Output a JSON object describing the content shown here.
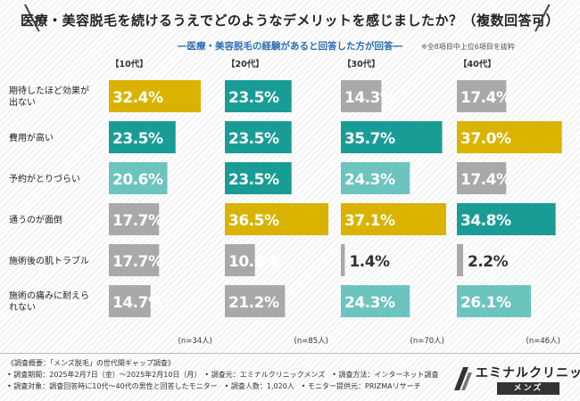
{
  "title": "医療・美容脱毛を続けるうえでどのようなデメリットを感じましたか？（複数回答可）",
  "subtitle": "―医療・美容脱毛の経験があると回答した方が回答―",
  "note": "※全8項目中上位6項目を抜粋",
  "chart_data": {
    "type": "bar",
    "orientation": "horizontal",
    "title": "医療・美容脱毛を続けるうえでどのようなデメリットを感じましたか？（複数回答可）",
    "unit": "%",
    "categories": [
      "期待したほど効果が出ない",
      "費用が高い",
      "予約がとりづらい",
      "通うのが面倒",
      "施術後の肌トラブル",
      "施術の痛みに耐えられない"
    ],
    "series": [
      {
        "name": "【10代】",
        "n": "(n=34人)",
        "values": [
          32.4,
          23.5,
          20.6,
          17.7,
          17.7,
          14.7
        ],
        "labels": [
          "32.4%",
          "23.5%",
          "20.6%",
          "17.7%",
          "17.7%",
          "14.7%"
        ]
      },
      {
        "name": "【20代】",
        "n": "(n=85人)",
        "values": [
          23.5,
          23.5,
          23.5,
          36.5,
          10.6,
          21.2
        ],
        "labels": [
          "23.5%",
          "23.5%",
          "23.5%",
          "36.5%",
          "10.6%",
          "21.2%"
        ]
      },
      {
        "name": "【30代】",
        "n": "(n=70人)",
        "values": [
          14.3,
          35.7,
          24.3,
          37.1,
          1.4,
          24.3
        ],
        "labels": [
          "14.3%",
          "35.7%",
          "24.3%",
          "37.1%",
          "1.4%",
          "24.3%"
        ]
      },
      {
        "name": "【40代】",
        "n": "(n=46人)",
        "values": [
          17.4,
          37.0,
          17.4,
          34.8,
          2.2,
          26.1
        ],
        "labels": [
          "17.4%",
          "37.0%",
          "17.4%",
          "34.8%",
          "2.2%",
          "26.1%"
        ]
      }
    ],
    "colors": {
      "top": "#d9b300",
      "second": "#1a9c96",
      "third": "#6cc4bf",
      "other": "#a9a9a9"
    }
  },
  "survey": {
    "line1": "《調査概要：「メンズ脱毛」の世代間ギャップ調査》",
    "line2": "• 調査期間：2025年2月7日（金）〜2025年2月10日（月）　• 調査元：エミナルクリニックメンズ　• 調査方法：インターネット調査",
    "line3": "• 調査対象：調査回答時に10代〜40代の男性と回答したモニター　• 調査人数：1,020人　• モニター提供元：PRIZMAリサーチ"
  },
  "logo": {
    "main": "エミナルクリニック",
    "sub": "メンズ"
  }
}
